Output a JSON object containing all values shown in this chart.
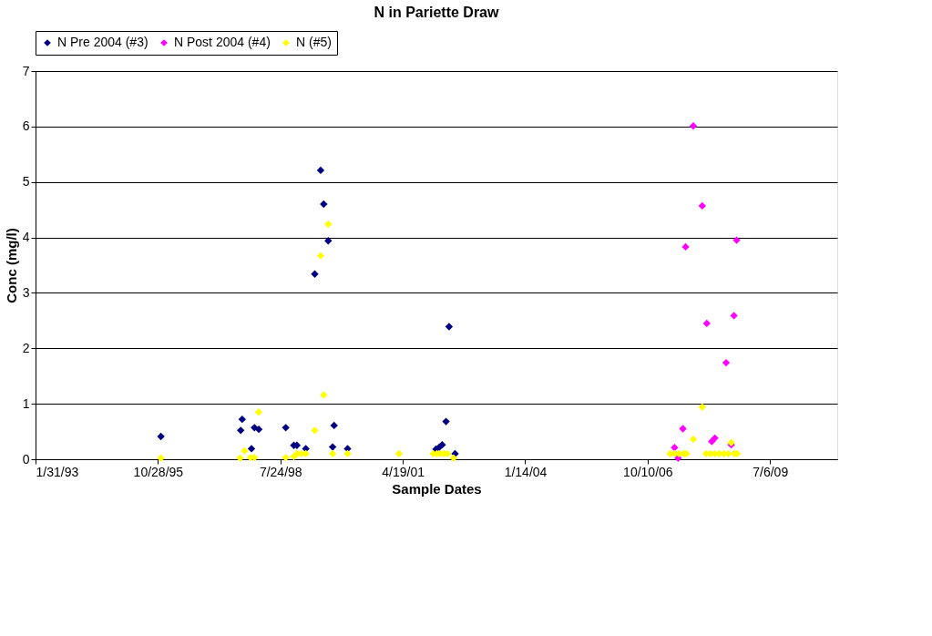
{
  "chart_data": {
    "type": "scatter",
    "title": "N in Pariette Draw",
    "xlabel": "Sample Dates",
    "ylabel": "Conc (mg/l)",
    "xlim": [
      "1993-01-31",
      "2011-01-06"
    ],
    "xticks": [
      {
        "value": "1993-01-31",
        "label": "1/31/93"
      },
      {
        "value": "1995-10-28",
        "label": "10/28/95"
      },
      {
        "value": "1998-07-24",
        "label": "7/24/98"
      },
      {
        "value": "2001-04-19",
        "label": "4/19/01"
      },
      {
        "value": "2004-01-14",
        "label": "1/14/04"
      },
      {
        "value": "2006-10-10",
        "label": "10/10/06"
      },
      {
        "value": "2009-07-06",
        "label": "7/6/09"
      }
    ],
    "ylim": [
      0,
      7
    ],
    "yticks": [
      0,
      1,
      2,
      3,
      4,
      5,
      6,
      7
    ],
    "grid": "y",
    "legend": "top",
    "marker": "diamond",
    "series": [
      {
        "name": "N Pre 2004 (#3)",
        "color": "#000080",
        "x": [
          "1995-11-21",
          "1997-09-15",
          "1997-09-03",
          "1997-11-30",
          "1997-12-24",
          "1998-01-29",
          "1998-09-06",
          "1998-11-11",
          "1998-12-06",
          "1999-02-17",
          "1999-05-01",
          "1999-06-18",
          "1999-07-13",
          "1999-08-19",
          "1999-09-24",
          "1999-10-06",
          "2000-01-24",
          "2002-01-15",
          "2002-02-13",
          "2002-03-07",
          "2002-04-07",
          "2002-05-02",
          "2002-06-20"
        ],
        "values": [
          0.41,
          0.72,
          0.52,
          0.19,
          0.57,
          0.54,
          0.57,
          0.25,
          0.25,
          0.19,
          3.34,
          5.21,
          4.6,
          3.94,
          0.22,
          0.61,
          0.19,
          0.18,
          0.22,
          0.26,
          0.68,
          2.39,
          0.1
        ]
      },
      {
        "name": "N Post 2004 (#4)",
        "color": "#ff00ff",
        "x": [
          "2007-05-18",
          "2007-06-16",
          "2007-07-25",
          "2007-08-16",
          "2007-10-18",
          "2007-12-30",
          "2008-02-05",
          "2008-03-17",
          "2008-04-11",
          "2008-07-12",
          "2008-08-23",
          "2008-09-14",
          "2008-10-06"
        ],
        "values": [
          0.21,
          0.02,
          0.55,
          3.83,
          6.01,
          4.57,
          2.45,
          0.32,
          0.38,
          1.74,
          0.26,
          2.59,
          3.95
        ]
      },
      {
        "name": "N (#5)",
        "color": "#ffff00",
        "x": [
          "1995-11-21",
          "1997-08-29",
          "1997-10-04",
          "1997-11-22",
          "1997-12-24",
          "1998-01-27",
          "1998-09-06",
          "1998-11-11",
          "1998-12-06",
          "1999-01-11",
          "1999-02-17",
          "1999-05-01",
          "1999-06-18",
          "1999-07-13",
          "1999-08-19",
          "1999-09-24",
          "2000-01-24",
          "2001-03-19",
          "2001-12-24",
          "2002-01-22",
          "2002-02-20",
          "2002-03-22",
          "2002-04-20",
          "2002-06-08",
          "2007-04-11",
          "2007-05-18",
          "2007-06-23",
          "2007-07-30",
          "2007-08-23",
          "2007-10-18",
          "2007-12-30",
          "2008-01-29",
          "2008-03-05",
          "2008-04-11",
          "2008-05-17",
          "2008-06-23",
          "2008-07-29",
          "2008-08-23",
          "2008-09-16",
          "2008-10-10"
        ],
        "values": [
          0.02,
          0.02,
          0.15,
          0.03,
          0.03,
          0.85,
          0.03,
          0.05,
          0.1,
          0.1,
          0.1,
          0.52,
          3.67,
          1.16,
          4.24,
          0.1,
          0.1,
          0.1,
          0.1,
          0.1,
          0.1,
          0.1,
          0.1,
          0.02,
          0.1,
          0.1,
          0.1,
          0.1,
          0.1,
          0.36,
          0.94,
          0.1,
          0.1,
          0.1,
          0.1,
          0.1,
          0.1,
          0.3,
          0.1,
          0.1
        ]
      }
    ]
  }
}
